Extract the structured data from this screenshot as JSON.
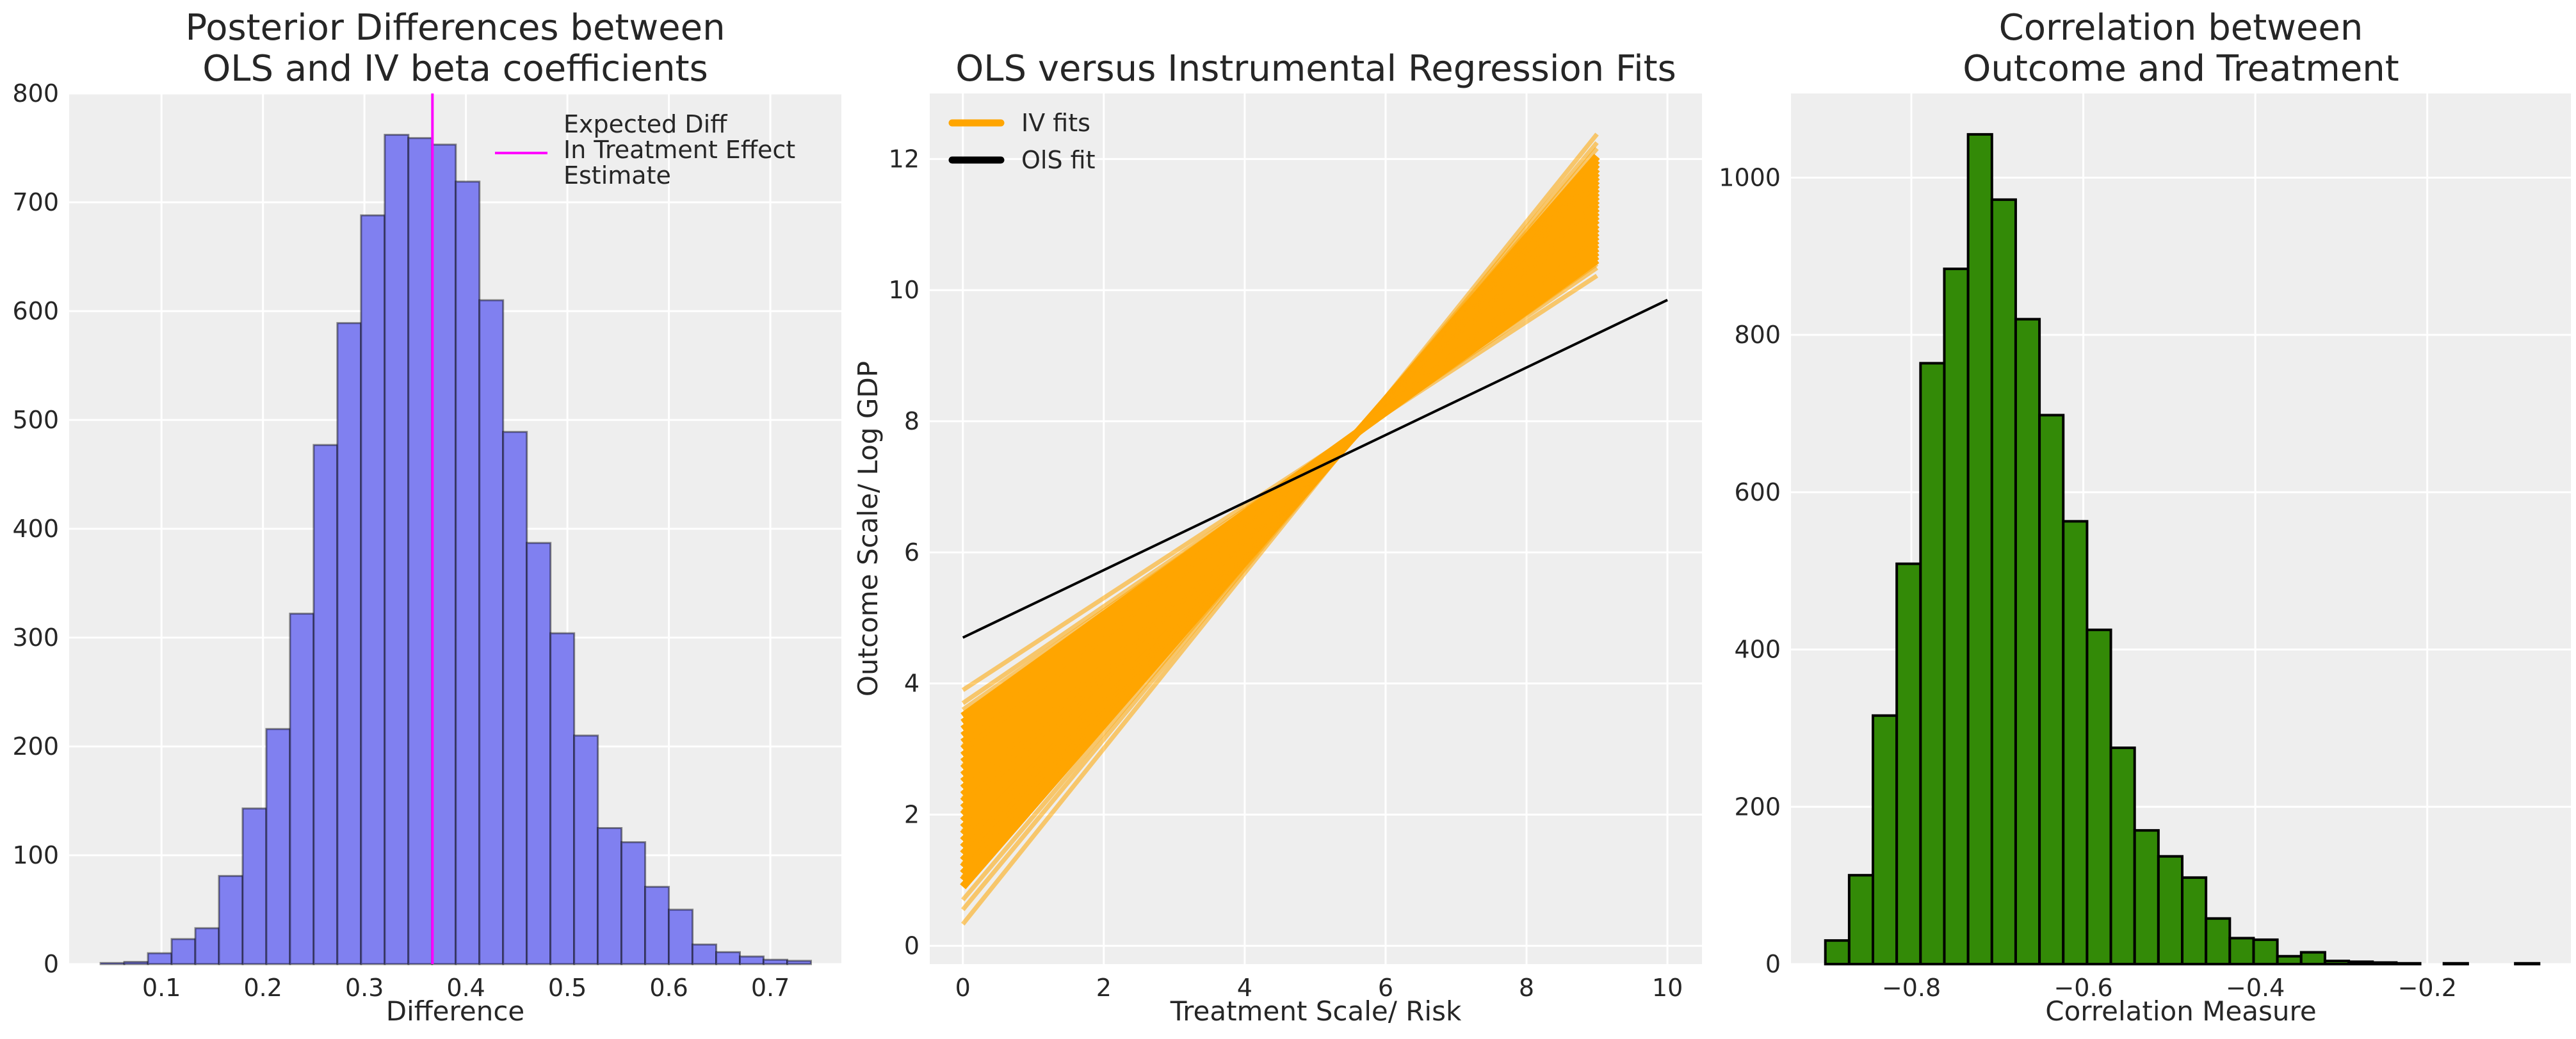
{
  "colors": {
    "background": "#eeeeee",
    "grid": "#ffffff",
    "hist1": "#8080f0",
    "hist2": "#338a07",
    "vline": "#ff00ff",
    "iv": "#ffa500",
    "ols": "#000000"
  },
  "chart_data": [
    {
      "type": "bar",
      "title": [
        "Posterior Differences between",
        "OLS and IV beta coefficients"
      ],
      "xlabel": "Difference",
      "ylabel": "",
      "xlim": [
        0.009,
        0.77
      ],
      "ylim": [
        0,
        800
      ],
      "xticks": [
        0.1,
        0.2,
        0.3,
        0.4,
        0.5,
        0.6,
        0.7
      ],
      "xtick_labels": [
        "0.1",
        "0.2",
        "0.3",
        "0.4",
        "0.5",
        "0.6",
        "0.7"
      ],
      "yticks": [
        0,
        100,
        200,
        300,
        400,
        500,
        600,
        700,
        800
      ],
      "ytick_labels": [
        "0",
        "100",
        "200",
        "300",
        "400",
        "500",
        "600",
        "700",
        "800"
      ],
      "grid": true,
      "bin_start": 0.04,
      "bin_end": 0.74,
      "counts": [
        1,
        2,
        10,
        23,
        33,
        81,
        143,
        216,
        322,
        477,
        589,
        688,
        762,
        759,
        753,
        719,
        610,
        489,
        387,
        304,
        210,
        125,
        112,
        71,
        50,
        18,
        11,
        7,
        4,
        3
      ],
      "vline": {
        "x": 0.367,
        "label": [
          "Expected Diff",
          " In Treatment Effect",
          " Estimate"
        ]
      },
      "legend_placement": "top-right"
    },
    {
      "type": "line",
      "title": [
        "OLS versus Instrumental Regression Fits"
      ],
      "xlabel": "Treatment Scale/ Risk",
      "ylabel": "Outcome Scale/ Log GDP",
      "xlim": [
        -0.47,
        10.49
      ],
      "ylim": [
        -0.28,
        13.0
      ],
      "xticks": [
        0,
        2,
        4,
        6,
        8,
        10
      ],
      "xtick_labels": [
        "0",
        "2",
        "4",
        "6",
        "8",
        "10"
      ],
      "yticks": [
        0,
        2,
        4,
        6,
        8,
        10,
        12
      ],
      "ytick_labels": [
        "0",
        "2",
        "4",
        "6",
        "8",
        "10",
        "12"
      ],
      "grid": true,
      "legend_placement": "top-left",
      "series": [
        {
          "name": "IV fits",
          "x": [
            0,
            9
          ],
          "lines_y": [
            [
              0.33,
              12.38
            ],
            [
              0.55,
              12.25
            ],
            [
              0.7,
              12.16
            ],
            [
              0.9,
              12.04
            ],
            [
              1.0,
              11.98
            ],
            [
              1.1,
              11.92
            ],
            [
              1.2,
              11.85
            ],
            [
              1.3,
              11.79
            ],
            [
              1.4,
              11.73
            ],
            [
              1.5,
              11.67
            ],
            [
              1.6,
              11.61
            ],
            [
              1.7,
              11.55
            ],
            [
              1.8,
              11.49
            ],
            [
              1.9,
              11.43
            ],
            [
              2.0,
              11.37
            ],
            [
              2.1,
              11.31
            ],
            [
              2.2,
              11.25
            ],
            [
              2.3,
              11.19
            ],
            [
              2.4,
              11.13
            ],
            [
              2.5,
              11.07
            ],
            [
              2.6,
              11.0
            ],
            [
              2.7,
              10.94
            ],
            [
              2.8,
              10.88
            ],
            [
              2.9,
              10.82
            ],
            [
              3.0,
              10.76
            ],
            [
              3.1,
              10.7
            ],
            [
              3.2,
              10.64
            ],
            [
              3.3,
              10.58
            ],
            [
              3.4,
              10.52
            ],
            [
              3.5,
              10.46
            ],
            [
              3.6,
              10.4
            ],
            [
              3.7,
              10.34
            ],
            [
              3.9,
              10.22
            ],
            [
              1.25,
              11.82
            ],
            [
              1.75,
              11.52
            ],
            [
              2.25,
              11.22
            ],
            [
              2.75,
              10.91
            ],
            [
              1.05,
              11.95
            ],
            [
              2.05,
              11.34
            ],
            [
              3.05,
              10.73
            ]
          ]
        },
        {
          "name": "OlS fit",
          "x": [
            0,
            10
          ],
          "y": [
            4.7,
            9.85
          ]
        }
      ]
    },
    {
      "type": "bar",
      "title": [
        "Correlation between",
        "Outcome and Treatment"
      ],
      "xlabel": "Correlation Measure",
      "ylabel": "",
      "xlim": [
        -0.94,
        -0.033
      ],
      "ylim": [
        0,
        1107
      ],
      "xticks": [
        -0.8,
        -0.6,
        -0.4,
        -0.2
      ],
      "xtick_labels": [
        "−0.8",
        "−0.6",
        "−0.4",
        "−0.2"
      ],
      "yticks": [
        0,
        200,
        400,
        600,
        800,
        1000
      ],
      "ytick_labels": [
        "0",
        "200",
        "400",
        "600",
        "800",
        "1000"
      ],
      "grid": true,
      "bin_start": -0.9,
      "bin_end": -0.07,
      "counts": [
        30,
        113,
        316,
        509,
        764,
        884,
        1055,
        972,
        820,
        698,
        563,
        425,
        275,
        170,
        137,
        110,
        58,
        33,
        31,
        10,
        15,
        4,
        3,
        2,
        1,
        0,
        1,
        0,
        0,
        1
      ]
    }
  ]
}
